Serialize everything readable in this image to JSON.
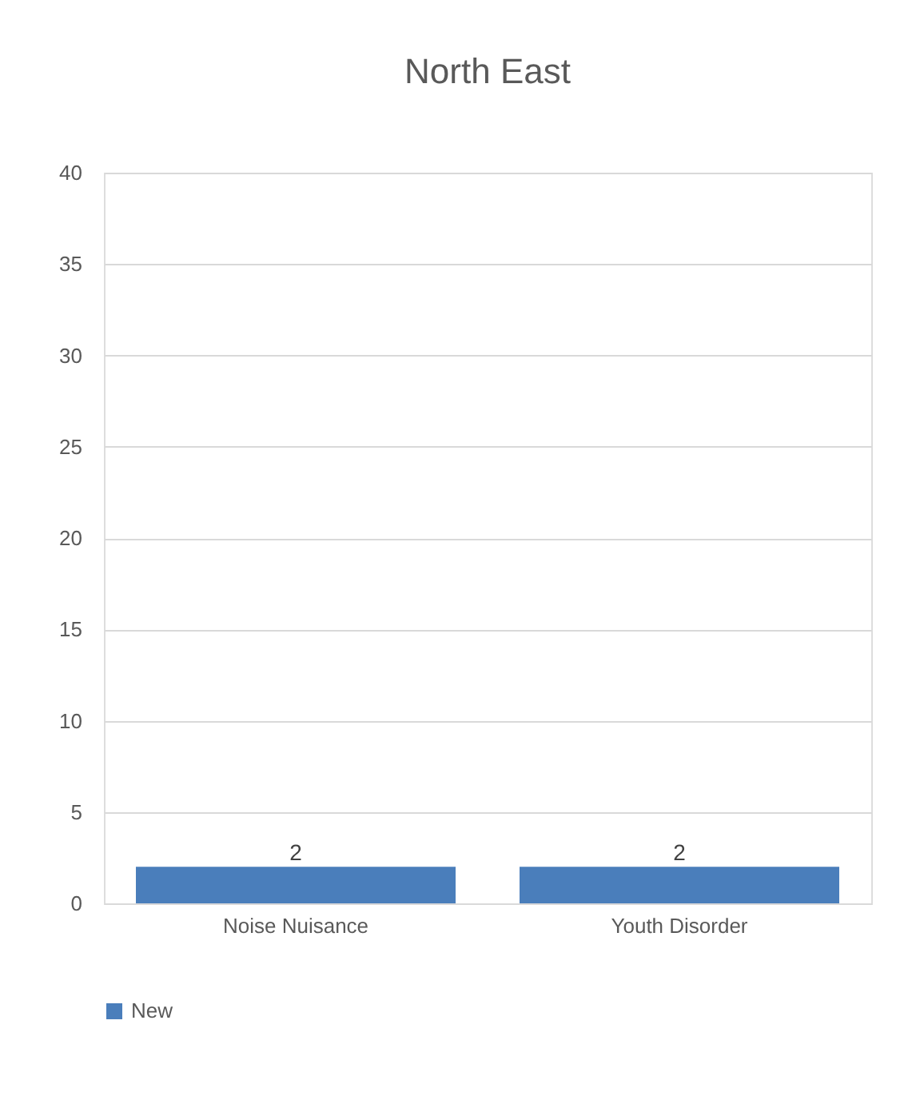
{
  "chart_data": {
    "type": "bar",
    "title": "North East",
    "categories": [
      "Noise Nuisance",
      "Youth Disorder"
    ],
    "series": [
      {
        "name": "New",
        "color": "#4a7ebb",
        "values": [
          2,
          2
        ]
      }
    ],
    "ylim": [
      0,
      40
    ],
    "yticks": [
      0,
      5,
      10,
      15,
      20,
      25,
      30,
      35,
      40
    ],
    "grid": "y",
    "legend": "bottom",
    "data_labels": true
  }
}
